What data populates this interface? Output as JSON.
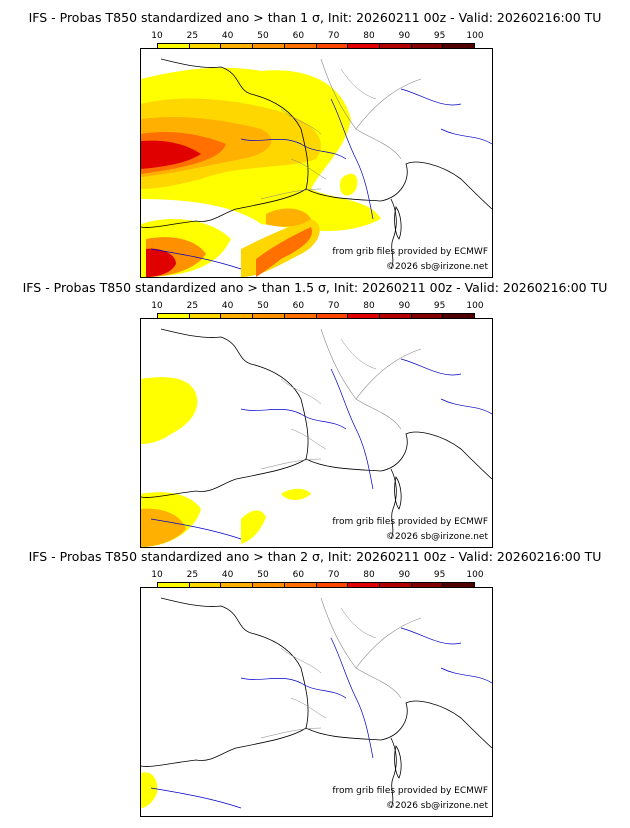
{
  "legend": {
    "labels": [
      "10",
      "25",
      "40",
      "50",
      "60",
      "70",
      "80",
      "90",
      "95",
      "100"
    ],
    "colors": [
      "#ffff00",
      "#ffd700",
      "#ffb000",
      "#ff9000",
      "#ff7000",
      "#ff4500",
      "#e00000",
      "#b00000",
      "#800000",
      "#500000"
    ]
  },
  "credits": {
    "source": "from grib files provided by ECMWF",
    "copyright": "©2026 sb@irizone.net"
  },
  "panels": [
    {
      "title": "IFS - Probas T850  standardized ano > than 1 σ, Init: 20260211 00z - Valid: 20260216:00 TU"
    },
    {
      "title": "IFS - Probas T850  standardized ano > than 1.5 σ, Init: 20260211 00z - Valid: 20260216:00 TU"
    },
    {
      "title": "IFS - Probas T850  standardized ano > than 2 σ, Init: 20260211 00z - Valid: 20260216:00 TU"
    }
  ]
}
